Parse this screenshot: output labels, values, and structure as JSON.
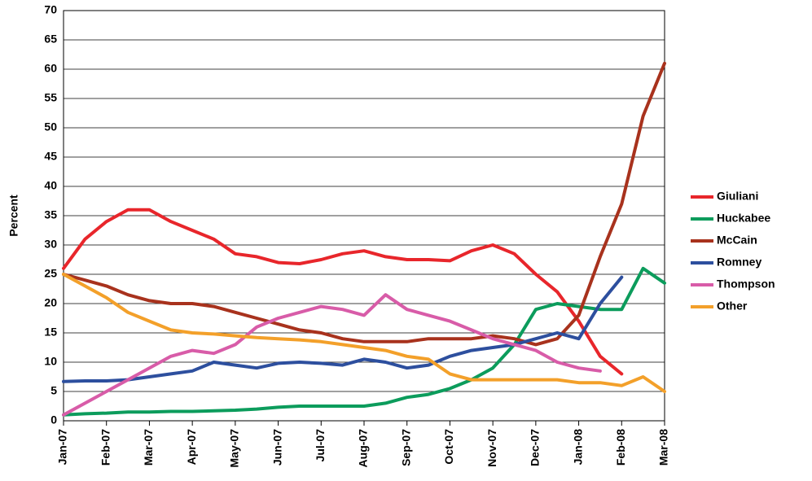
{
  "chart_data": {
    "type": "line",
    "y_label": "Percent",
    "categories": [
      "Jan-07",
      null,
      "Feb-07",
      null,
      "Mar-07",
      null,
      "Apr-07",
      null,
      "May-07",
      null,
      "Jun-07",
      null,
      "Jul-07",
      null,
      "Aug-07",
      null,
      "Sep-07",
      null,
      "Oct-07",
      null,
      "Nov-07",
      null,
      "Dec-07",
      null,
      "Jan-08",
      null,
      "Feb-08",
      null,
      "Mar-08"
    ],
    "series": [
      {
        "name": "Giuliani",
        "color": "#e8262b",
        "values": [
          26,
          31,
          34,
          36,
          36,
          34,
          32.5,
          31,
          28.5,
          28,
          27,
          26.8,
          27.5,
          28.5,
          29,
          28,
          27.5,
          27.5,
          27.3,
          29,
          30,
          28.5,
          25,
          22,
          17,
          11,
          8,
          null,
          null
        ]
      },
      {
        "name": "Huckabee",
        "color": "#0c9c5c",
        "values": [
          1,
          1.2,
          1.3,
          1.5,
          1.5,
          1.6,
          1.6,
          1.7,
          1.8,
          2,
          2.3,
          2.5,
          2.5,
          2.5,
          2.5,
          3,
          4,
          4.5,
          5.5,
          7,
          9,
          13,
          19,
          20,
          19.5,
          19,
          19,
          26,
          23.5
        ]
      },
      {
        "name": "McCain",
        "color": "#a8321d",
        "values": [
          25,
          24,
          23,
          21.5,
          20.5,
          20,
          20,
          19.5,
          18.5,
          17.5,
          16.5,
          15.5,
          15,
          14,
          13.5,
          13.5,
          13.5,
          14,
          14,
          14,
          14.5,
          14,
          13,
          14,
          18,
          28,
          37,
          52,
          61
        ]
      },
      {
        "name": "Romney",
        "color": "#2d4f9e",
        "values": [
          6.7,
          6.8,
          6.8,
          7,
          7.5,
          8,
          8.5,
          10,
          9.5,
          9,
          9.8,
          10,
          9.8,
          9.5,
          10.5,
          10,
          9,
          9.5,
          11,
          12,
          12.5,
          13,
          14,
          15,
          14,
          20,
          24.5,
          null,
          null
        ]
      },
      {
        "name": "Thompson",
        "color": "#d85ca8",
        "values": [
          1,
          3,
          5,
          7,
          9,
          11,
          12,
          11.5,
          13,
          16,
          17.5,
          18.5,
          19.5,
          19,
          18,
          21.5,
          19,
          18,
          17,
          15.5,
          14,
          13,
          12,
          10,
          9,
          8.5,
          null,
          null,
          null
        ]
      },
      {
        "name": "Other",
        "color": "#f3a02a",
        "values": [
          25,
          23,
          21,
          18.5,
          17,
          15.5,
          15,
          14.8,
          14.5,
          14.2,
          14,
          13.8,
          13.5,
          13,
          12.5,
          12,
          11,
          10.5,
          8,
          7,
          7,
          7,
          7,
          7,
          6.5,
          6.5,
          6,
          7.5,
          5
        ]
      }
    ],
    "ylim": [
      0,
      70
    ],
    "yticks": [
      0,
      5,
      10,
      15,
      20,
      25,
      30,
      35,
      40,
      45,
      50,
      55,
      60,
      65,
      70
    ],
    "grid": true
  }
}
